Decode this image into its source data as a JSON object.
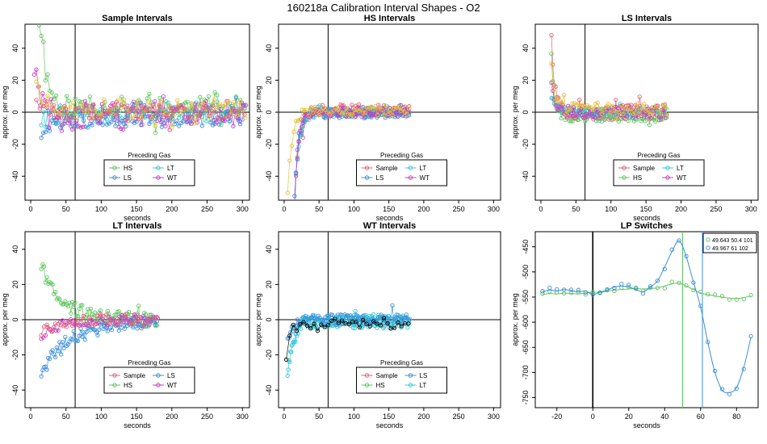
{
  "main_title": "160218a   Calibration Interval Shapes - O2",
  "colors": {
    "Sample": "#e0607a",
    "HS": "#5fc65f",
    "LS": "#3b8fd9",
    "LT": "#36c8d8",
    "WT": "#c640c0",
    "gold": "#e8c030",
    "black": "#000000",
    "vline_green": "#5fc65f",
    "vline_blue": "#3b8fd9"
  },
  "chart_data": [
    {
      "id": "sample",
      "type": "scatter",
      "title": "Sample Intervals",
      "xlabel": "seconds",
      "ylabel": "approx. per meg",
      "xlim": [
        -8,
        310
      ],
      "ylim": [
        -55,
        55
      ],
      "xticks": [
        "0",
        "50",
        "100",
        "150",
        "200",
        "250",
        "300"
      ],
      "xtick_values": [
        0,
        50,
        100,
        150,
        200,
        250,
        300
      ],
      "yticks": [
        "-40",
        "-20",
        "0",
        "20",
        "40"
      ],
      "ytick_values": [
        -40,
        -20,
        0,
        20,
        40
      ],
      "vline": 63,
      "hline": 0,
      "legend": {
        "title": "Preceding Gas",
        "position": "bottom-center",
        "entries": [
          "HS",
          "LT",
          "LS",
          "WT"
        ]
      },
      "series": [
        {
          "name": "HS",
          "color": "#5fc65f",
          "seed": 11,
          "start": 12,
          "end": 305,
          "step": 3,
          "a": 55,
          "tau": 10,
          "noise": 7,
          "spikes": 0.12,
          "offset": 3
        },
        {
          "name": "LT",
          "color": "#36c8d8",
          "seed": 22,
          "start": 15,
          "end": 305,
          "step": 3,
          "a": -5,
          "tau": 20,
          "noise": 6,
          "spikes": 0.05,
          "offset": 0
        },
        {
          "name": "LS",
          "color": "#3b8fd9",
          "seed": 33,
          "start": 15,
          "end": 305,
          "step": 3,
          "a": -10,
          "tau": 25,
          "noise": 6,
          "spikes": 0.05,
          "offset": -3
        },
        {
          "name": "WT",
          "color": "#c640c0",
          "seed": 44,
          "start": 5,
          "end": 305,
          "step": 3,
          "a": 30,
          "tau": 8,
          "noise": 9,
          "spikes": 0.1,
          "offset": -2
        },
        {
          "name": "gold",
          "color": "#e8c030",
          "seed": 55,
          "start": 8,
          "end": 305,
          "step": 4,
          "a": 20,
          "tau": 12,
          "noise": 6,
          "spikes": 0.05,
          "offset": 2
        },
        {
          "name": "Sample",
          "color": "#e0607a",
          "seed": 66,
          "start": 8,
          "end": 305,
          "step": 5,
          "a": 10,
          "tau": 15,
          "noise": 5,
          "spikes": 0.05,
          "offset": 0
        }
      ]
    },
    {
      "id": "hs",
      "type": "scatter",
      "title": "HS Intervals",
      "xlabel": "seconds",
      "ylabel": "approx. per meg",
      "xlim": [
        -8,
        310
      ],
      "ylim": [
        -55,
        55
      ],
      "xticks": [
        "0",
        "50",
        "100",
        "150",
        "200",
        "250",
        "300"
      ],
      "xtick_values": [
        0,
        50,
        100,
        150,
        200,
        250,
        300
      ],
      "yticks": [
        "-40",
        "-20",
        "0",
        "20",
        "40"
      ],
      "ytick_values": [
        -40,
        -20,
        0,
        20,
        40
      ],
      "vline": 63,
      "hline": 0,
      "legend": {
        "title": "Preceding Gas",
        "position": "bottom-center",
        "entries": [
          "Sample",
          "LT",
          "LS",
          "WT"
        ]
      },
      "series": [
        {
          "name": "Sample",
          "color": "#e0607a",
          "seed": 101,
          "start": 15,
          "end": 180,
          "step": 2,
          "a": -60,
          "tau": 6,
          "noise": 4,
          "spikes": 0.06,
          "offset": 1
        },
        {
          "name": "LT",
          "color": "#36c8d8",
          "seed": 102,
          "start": 15,
          "end": 180,
          "step": 2,
          "a": -55,
          "tau": 6,
          "noise": 3,
          "spikes": 0.02,
          "offset": 0
        },
        {
          "name": "LS",
          "color": "#3b8fd9",
          "seed": 103,
          "start": 15,
          "end": 180,
          "step": 2,
          "a": -50,
          "tau": 6,
          "noise": 3,
          "spikes": 0.02,
          "offset": -1
        },
        {
          "name": "WT",
          "color": "#c640c0",
          "seed": 104,
          "start": 15,
          "end": 180,
          "step": 2,
          "a": -55,
          "tau": 5,
          "noise": 3,
          "spikes": 0.02,
          "offset": 0
        },
        {
          "name": "gold",
          "color": "#e8c030",
          "seed": 105,
          "start": 5,
          "end": 180,
          "step": 3,
          "a": -50,
          "tau": 7,
          "noise": 3,
          "spikes": 0.02,
          "offset": 1
        }
      ]
    },
    {
      "id": "ls",
      "type": "scatter",
      "title": "LS Intervals",
      "xlabel": "seconds",
      "ylabel": "approx. per meg",
      "xlim": [
        -8,
        310
      ],
      "ylim": [
        -55,
        55
      ],
      "xticks": [
        "0",
        "50",
        "100",
        "150",
        "200",
        "250",
        "300"
      ],
      "xtick_values": [
        0,
        50,
        100,
        150,
        200,
        250,
        300
      ],
      "yticks": [
        "-40",
        "-20",
        "0",
        "20",
        "40"
      ],
      "ytick_values": [
        -40,
        -20,
        0,
        20,
        40
      ],
      "vline": 63,
      "hline": 0,
      "legend": {
        "title": "Preceding Gas",
        "position": "bottom-center",
        "entries": [
          "Sample",
          "LT",
          "HS",
          "WT"
        ]
      },
      "series": [
        {
          "name": "Sample",
          "color": "#e0607a",
          "seed": 201,
          "start": 15,
          "end": 180,
          "step": 2,
          "a": 50,
          "tau": 4,
          "noise": 5,
          "spikes": 0.1,
          "offset": 0
        },
        {
          "name": "HS",
          "color": "#5fc65f",
          "seed": 202,
          "start": 15,
          "end": 180,
          "step": 2,
          "a": 40,
          "tau": 4,
          "noise": 4,
          "spikes": 0.05,
          "offset": -2
        },
        {
          "name": "LT",
          "color": "#36c8d8",
          "seed": 203,
          "start": 15,
          "end": 180,
          "step": 2,
          "a": 10,
          "tau": 5,
          "noise": 3,
          "spikes": 0.03,
          "offset": 0
        },
        {
          "name": "WT",
          "color": "#c640c0",
          "seed": 204,
          "start": 15,
          "end": 180,
          "step": 2,
          "a": 20,
          "tau": 5,
          "noise": 4,
          "spikes": 0.03,
          "offset": 0
        },
        {
          "name": "gold",
          "color": "#e8c030",
          "seed": 205,
          "start": 15,
          "end": 180,
          "step": 3,
          "a": 30,
          "tau": 5,
          "noise": 4,
          "spikes": 0.04,
          "offset": 2
        }
      ]
    },
    {
      "id": "lt",
      "type": "scatter",
      "title": "LT Intervals",
      "xlabel": "seconds",
      "ylabel": "approx. per meg",
      "xlim": [
        -8,
        310
      ],
      "ylim": [
        -50,
        50
      ],
      "xticks": [
        "0",
        "50",
        "100",
        "150",
        "200",
        "250",
        "300"
      ],
      "xtick_values": [
        0,
        50,
        100,
        150,
        200,
        250,
        300
      ],
      "yticks": [
        "-40",
        "-20",
        "0",
        "20",
        "40"
      ],
      "ytick_values": [
        -40,
        -20,
        0,
        20,
        40
      ],
      "vline": 63,
      "hline": 0,
      "legend": {
        "title": "Preceding Gas",
        "position": "bottom-center",
        "entries": [
          "Sample",
          "LS",
          "HS",
          "WT"
        ]
      },
      "series": [
        {
          "name": "HS",
          "color": "#5fc65f",
          "seed": 301,
          "start": 15,
          "end": 180,
          "step": 2,
          "a": 30,
          "tau": 30,
          "noise": 4,
          "spikes": 0.02,
          "offset": 0
        },
        {
          "name": "LS",
          "color": "#3b8fd9",
          "seed": 302,
          "start": 15,
          "end": 180,
          "step": 2,
          "a": -30,
          "tau": 40,
          "noise": 4,
          "spikes": 0.02,
          "offset": -1
        },
        {
          "name": "WT",
          "color": "#c640c0",
          "seed": 303,
          "start": 15,
          "end": 180,
          "step": 3,
          "a": -10,
          "tau": 25,
          "noise": 3,
          "spikes": 0.02,
          "offset": 0
        },
        {
          "name": "Sample",
          "color": "#e0607a",
          "seed": 304,
          "start": 15,
          "end": 180,
          "step": 4,
          "a": -8,
          "tau": 25,
          "noise": 3,
          "spikes": 0.02,
          "offset": 0
        }
      ]
    },
    {
      "id": "wt",
      "type": "scatter",
      "title": "WT Intervals",
      "xlabel": "seconds",
      "ylabel": "approx. per meg",
      "xlim": [
        -8,
        310
      ],
      "ylim": [
        -50,
        50
      ],
      "xticks": [
        "0",
        "50",
        "100",
        "150",
        "200",
        "250",
        "300"
      ],
      "xtick_values": [
        0,
        50,
        100,
        150,
        200,
        250,
        300
      ],
      "yticks": [
        "-40",
        "-20",
        "0",
        "20",
        "40"
      ],
      "ytick_values": [
        -40,
        -20,
        0,
        20,
        40
      ],
      "vline": 63,
      "hline": 0,
      "legend": {
        "title": "Preceding Gas",
        "position": "bottom-center",
        "entries": [
          "Sample",
          "LS",
          "HS",
          "LT"
        ]
      },
      "series": [
        {
          "name": "LT",
          "color": "#36c8d8",
          "seed": 401,
          "start": 5,
          "end": 180,
          "step": 1,
          "a": -30,
          "tau": 8,
          "noise": 4,
          "spikes": 0.02,
          "offset": -1
        },
        {
          "name": "LS",
          "color": "#3b8fd9",
          "seed": 402,
          "start": 5,
          "end": 180,
          "step": 2,
          "a": -10,
          "tau": 8,
          "noise": 3,
          "spikes": 0.02,
          "offset": 0
        },
        {
          "name": "Black",
          "color": "#000000",
          "seed": 403,
          "start": 3,
          "end": 180,
          "step": 5,
          "a": -20,
          "tau": 6,
          "noise": 3,
          "spikes": 0.02,
          "offset": -2
        }
      ]
    },
    {
      "id": "lp",
      "type": "line",
      "title": "LP Switches",
      "xlabel": "seconds",
      "ylabel": "approx. per meg",
      "xlim": [
        -32,
        92
      ],
      "ylim": [
        -770,
        -420
      ],
      "xticks": [
        "-20",
        "0",
        "20",
        "40",
        "60",
        "80"
      ],
      "xtick_values": [
        -20,
        0,
        20,
        40,
        60,
        80
      ],
      "yticks": [
        "-450",
        "-500",
        "-550",
        "-600",
        "-650",
        "-700",
        "-750"
      ],
      "ytick_values": [
        -450,
        -500,
        -550,
        -600,
        -650,
        -700,
        -750
      ],
      "vline_zero": 0,
      "vlines": [
        50,
        61
      ],
      "legend": {
        "position": "top-right",
        "entries": [
          "49.643 50.4 101",
          "49.967 61 102"
        ]
      },
      "series": [
        {
          "name": "49.643 50.4 101",
          "color": "#5fc65f",
          "x": [
            -28,
            -24,
            -20,
            -16,
            -12,
            -8,
            -4,
            0,
            4,
            8,
            12,
            16,
            20,
            24,
            28,
            32,
            36,
            40,
            44,
            48,
            52,
            56,
            60,
            64,
            68,
            72,
            76,
            80,
            84,
            88
          ],
          "y": [
            -545,
            -543,
            -544,
            -542,
            -543,
            -544,
            -542,
            -540,
            -541,
            -538,
            -536,
            -535,
            -534,
            -533,
            -534,
            -533,
            -532,
            -528,
            -524,
            -522,
            -528,
            -535,
            -542,
            -545,
            -548,
            -550,
            -552,
            -553,
            -551,
            -548
          ]
        },
        {
          "name": "49.967 61 102",
          "color": "#3b8fd9",
          "x": [
            -28,
            -24,
            -20,
            -16,
            -12,
            -8,
            -4,
            0,
            4,
            8,
            12,
            16,
            20,
            24,
            28,
            32,
            36,
            40,
            44,
            48,
            52,
            56,
            60,
            64,
            68,
            72,
            76,
            80,
            84,
            88
          ],
          "y": [
            -540,
            -536,
            -538,
            -535,
            -537,
            -540,
            -538,
            -545,
            -540,
            -536,
            -530,
            -528,
            -530,
            -535,
            -540,
            -530,
            -518,
            -490,
            -460,
            -438,
            -470,
            -520,
            -570,
            -640,
            -700,
            -735,
            -740,
            -730,
            -690,
            -630
          ]
        }
      ]
    }
  ]
}
